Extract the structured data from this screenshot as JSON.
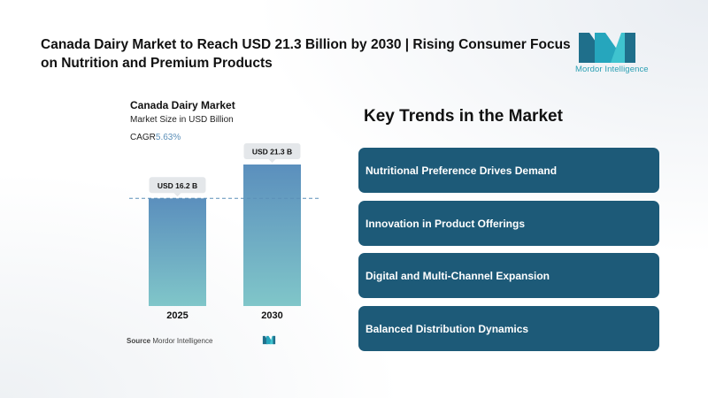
{
  "header": {
    "title": "Canada Dairy Market to Reach USD 21.3 Billion by 2030 | Rising Consumer Focus on Nutrition and Premium Products",
    "logo_text": "Mordor Intelligence",
    "logo_icon": "mordor-intelligence-logo"
  },
  "chart_data": {
    "type": "bar",
    "title": "Canada Dairy Market",
    "subtitle": "Market Size in USD Billion",
    "cagr_label": "CAGR",
    "cagr_value": "5.63%",
    "categories": [
      "2025",
      "2030"
    ],
    "values": [
      16.2,
      21.3
    ],
    "data_labels": [
      "USD 16.2 B",
      "USD 21.3 B"
    ],
    "ylim": [
      0,
      21.3
    ],
    "grid": false,
    "reference_line": "dashed line at 2025 value",
    "colors": {
      "bar_top": "#5b8fbd",
      "bar_bottom": "#80c6c9",
      "label_bg": "#e4e7ea",
      "dash": "#5b8fb8"
    }
  },
  "source": {
    "label": "Source",
    "value": "Mordor Intelligence"
  },
  "trends": {
    "title": "Key Trends in the Market",
    "items": [
      "Nutritional Preference Drives Demand",
      "Innovation in Product Offerings",
      "Digital and Multi-Channel Expansion",
      "Balanced Distribution Dynamics"
    ],
    "card_color": "#1d5a78"
  }
}
